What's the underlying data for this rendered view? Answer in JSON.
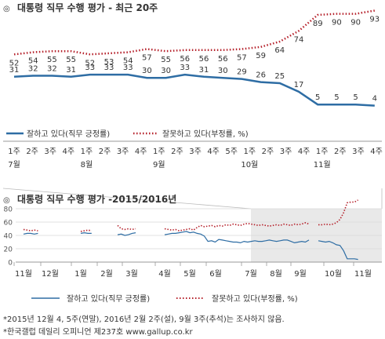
{
  "top_chart": {
    "title_mark": "◎",
    "title": "대통령 직무 수행 평가 - 최근 20주",
    "legend": {
      "approve": "잘하고 있다(직무 긍정률)",
      "disapprove": "잘못하고 있다(부정률, %)"
    },
    "week_labels": [
      "1주",
      "2주",
      "3주",
      "4주",
      "1주",
      "2주",
      "3주",
      "4주",
      "1주",
      "2주",
      "3주",
      "4주",
      "5주",
      "1주",
      "2주",
      "3주",
      "4주",
      "1주",
      "2주",
      "3주",
      "4주"
    ],
    "month_labels": [
      {
        "label": "7월",
        "week_index": 0
      },
      {
        "label": "8월",
        "week_index": 4
      },
      {
        "label": "9월",
        "week_index": 8
      },
      {
        "label": "10월",
        "week_index": 13
      },
      {
        "label": "11월",
        "week_index": 17
      }
    ]
  },
  "bottom_chart": {
    "title_mark": "◎",
    "title": "대통령 직무 수행 평가 -2015/2016년",
    "legend": {
      "approve": "잘하고 있다(직무 긍정률)",
      "disapprove": "잘못하고 있다(부정률, %)"
    },
    "y_ticks": [
      "80",
      "60",
      "40",
      "20",
      "0"
    ],
    "month_labels": [
      "11월",
      "12월",
      "1월",
      "2월",
      "3월",
      "4월",
      "5월",
      "6월",
      "7월",
      "8월",
      "9월",
      "10월",
      "11월"
    ]
  },
  "footnotes": [
    "*2015년 12월 4, 5주(연말), 2016년 2월 2주(설), 9월 3주(추석)는 조사하지 않음.",
    "*한국갤럽 데일리 오피니언 제237호 www.gallup.co.kr"
  ],
  "colors": {
    "approve": "#2e6da4",
    "disapprove": "#b5202a",
    "text": "#333333",
    "grid": "#d9d9d9",
    "shade": "#e9e9e9"
  },
  "chart_data": [
    {
      "type": "line",
      "title": "대통령 직무 수행 평가 - 최근 20주",
      "categories": [
        "7월 1주",
        "7월 2주",
        "7월 3주",
        "7월 4주",
        "8월 1주",
        "8월 2주",
        "8월 3주",
        "8월 4주",
        "9월 1주",
        "9월 2주",
        "9월 4주",
        "9월 5주",
        "10월 1주",
        "10월 2주",
        "10월 3주",
        "10월 4주",
        "11월 1주",
        "11월 2주",
        "11월 3주",
        "11월 4주"
      ],
      "series": [
        {
          "name": "잘하고 있다(직무 긍정률)",
          "values": [
            31,
            32,
            32,
            31,
            33,
            33,
            33,
            30,
            30,
            33,
            31,
            30,
            29,
            26,
            25,
            17,
            5,
            5,
            5,
            4
          ]
        },
        {
          "name": "잘못하고 있다(부정률, %)",
          "values": [
            52,
            54,
            55,
            55,
            52,
            53,
            54,
            57,
            55,
            56,
            56,
            56,
            57,
            59,
            64,
            74,
            89,
            90,
            90,
            93
          ]
        }
      ],
      "legend": "bottom",
      "grid": false
    },
    {
      "type": "line",
      "title": "대통령 직무 수행 평가 -2015/2016년",
      "x_range": [
        "2015-11",
        "2016-11"
      ],
      "ylim": [
        0,
        80
      ],
      "y_ticks": [
        0,
        20,
        40,
        60,
        80
      ],
      "series": [
        {
          "name": "잘하고 있다(직무 긍정률)",
          "values": [
            [
              42,
              43,
              43,
              42,
              43
            ],
            [
              43,
              44,
              43,
              43
            ],
            [
              41,
              42,
              40,
              41,
              43,
              44
            ],
            [
              41,
              42,
              43,
              43,
              44,
              45,
              46,
              44,
              45,
              43,
              42,
              39,
              31,
              32,
              30,
              34,
              33,
              32,
              31,
              30,
              30,
              29,
              31,
              30,
              31,
              32,
              31,
              31,
              32,
              33,
              32,
              31,
              32,
              33,
              33,
              31,
              29,
              30,
              31,
              30,
              33
            ],
            [
              32,
              31,
              30,
              31,
              29,
              26,
              25,
              17,
              5,
              5,
              5,
              4
            ]
          ]
        },
        {
          "name": "잘못하고 있다(부정률, %)",
          "values": [
            [
              49,
              48,
              47,
              48,
              47
            ],
            [
              46,
              47,
              48,
              47
            ],
            [
              55,
              50,
              49,
              50,
              49,
              50
            ],
            [
              50,
              49,
              48,
              49,
              47,
              48,
              49,
              50,
              48,
              52,
              55,
              53,
              54,
              55,
              53,
              55,
              54,
              56,
              55,
              57,
              56,
              55,
              57,
              58,
              57,
              56,
              55,
              56,
              55,
              54,
              55,
              56,
              55,
              57,
              56,
              55,
              57,
              56,
              57,
              59,
              57
            ],
            [
              56,
              56,
              57,
              56,
              57,
              59,
              64,
              74,
              89,
              90,
              90,
              93
            ]
          ]
        }
      ],
      "legend": "bottom",
      "grid": true,
      "note": "2015년 12월 4, 5주, 2016년 2월 2주, 9월 3주 조사 없음"
    }
  ]
}
